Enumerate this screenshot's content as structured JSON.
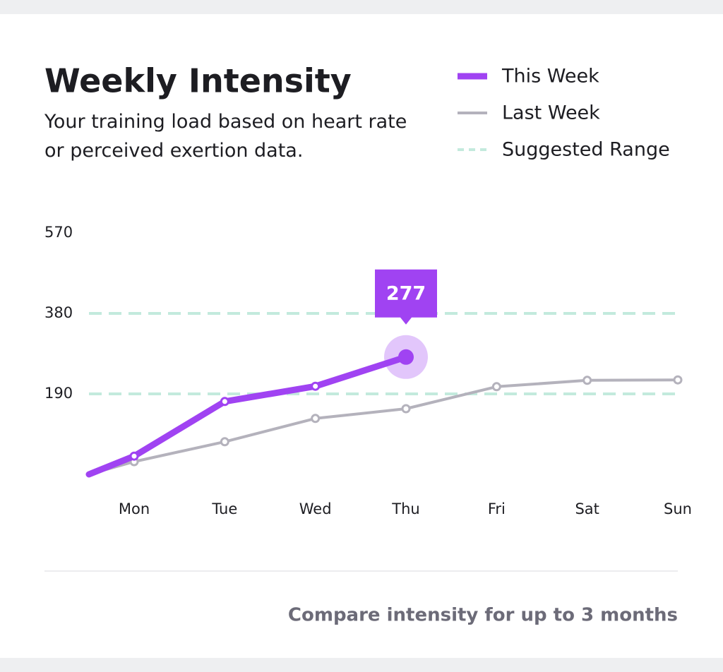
{
  "chart_data": {
    "type": "line",
    "title": "Weekly Intensity",
    "subtitle": "Your training load based on heart rate or perceived exertion data.",
    "categories": [
      "Mon",
      "Tue",
      "Wed",
      "Thu",
      "Fri",
      "Sat",
      "Sun"
    ],
    "series": [
      {
        "name": "This Week",
        "color": "#a043f2",
        "values": [
          43,
          172,
          208,
          277,
          null,
          null,
          null
        ]
      },
      {
        "name": "Last Week",
        "color": "#b4b2bc",
        "values": [
          30,
          77,
          132,
          155,
          207,
          222,
          223
        ]
      }
    ],
    "reference_range": {
      "name": "Suggested Range",
      "color": "#c3eadd",
      "values": [
        190,
        380
      ]
    },
    "ylim": [
      0,
      570
    ],
    "yticks": [
      190,
      380,
      570
    ],
    "footer": "Compare intensity for up to 3 months"
  }
}
